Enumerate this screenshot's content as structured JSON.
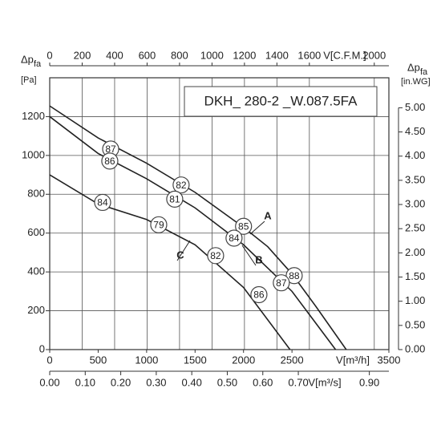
{
  "chart_data": {
    "type": "line",
    "title": "DKH_ 280-2 _W.087.5FA",
    "ylabel": "Δp",
    "ylabel_sub": "fa",
    "yunit": "[Pa]",
    "y2label": "Δp",
    "y2label_sub": "fa",
    "y2unit": "[in.WG]",
    "xlabel": "V[m³/h]",
    "x2label": "V[C.F.M.]",
    "x3label": "V[m³/s]",
    "xlim": [
      0,
      3500
    ],
    "xticks": [
      0,
      500,
      1000,
      1500,
      2000,
      2500,
      3500
    ],
    "ylim": [
      0,
      1400
    ],
    "yticks": [
      0,
      200,
      400,
      600,
      800,
      1000,
      1200
    ],
    "y2lim": [
      0,
      5.62
    ],
    "y2ticks": [
      {
        "value": 0,
        "label": "0.00"
      },
      {
        "value": 0.5,
        "label": "0.50"
      },
      {
        "value": 1,
        "label": "1.00"
      },
      {
        "value": 1.5,
        "label": "1.50"
      },
      {
        "value": 2,
        "label": "2.00"
      },
      {
        "value": 2.5,
        "label": "2.50"
      },
      {
        "value": 3,
        "label": "3.00"
      },
      {
        "value": 3.5,
        "label": "3.50"
      },
      {
        "value": 4,
        "label": "4.00"
      },
      {
        "value": 4.5,
        "label": "4.50"
      },
      {
        "value": 5,
        "label": "5.00"
      }
    ],
    "x2lim": [
      0,
      2090
    ],
    "x2ticks": [
      0,
      200,
      400,
      600,
      800,
      1000,
      1200,
      1400,
      1600,
      2000
    ],
    "x3lim": [
      0,
      0.955
    ],
    "x3ticks": [
      {
        "value": 0,
        "label": "0.00"
      },
      {
        "value": 0.1,
        "label": "0.10"
      },
      {
        "value": 0.2,
        "label": "0.20"
      },
      {
        "value": 0.3,
        "label": "0.30"
      },
      {
        "value": 0.4,
        "label": "0.40"
      },
      {
        "value": 0.5,
        "label": "0.50"
      },
      {
        "value": 0.6,
        "label": "0.60"
      },
      {
        "value": 0.7,
        "label": "0.70"
      },
      {
        "value": 0.9,
        "label": "0.90"
      }
    ],
    "grid": true,
    "series": [
      {
        "name": "A",
        "color": "#222222",
        "x": [
          0,
          500,
          1000,
          1500,
          2000,
          2250,
          2500,
          2750,
          3060
        ],
        "values": [
          1255,
          1090,
          960,
          810,
          630,
          530,
          390,
          220,
          0
        ],
        "efficiency": [
          {
            "x": 629,
            "y": 1033,
            "value": 87
          },
          {
            "x": 1356,
            "y": 848,
            "value": 82
          },
          {
            "x": 2000,
            "y": 635,
            "value": 85
          },
          {
            "x": 2523,
            "y": 381,
            "value": 88
          }
        ]
      },
      {
        "name": "B",
        "color": "#222222",
        "x": [
          0,
          500,
          1000,
          1500,
          2000,
          2500,
          2950
        ],
        "values": [
          1200,
          1010,
          880,
          730,
          540,
          300,
          0
        ],
        "efficiency": [
          {
            "x": 620,
            "y": 971,
            "value": 86
          },
          {
            "x": 1290,
            "y": 775,
            "value": 81
          },
          {
            "x": 1902,
            "y": 574,
            "value": 84
          },
          {
            "x": 2390,
            "y": 344,
            "value": 87
          }
        ]
      },
      {
        "name": "C",
        "color": "#222222",
        "x": [
          0,
          500,
          1000,
          1500,
          2000,
          2480
        ],
        "values": [
          900,
          750,
          670,
          540,
          320,
          0
        ],
        "efficiency": [
          {
            "x": 546,
            "y": 758,
            "value": 84
          },
          {
            "x": 1125,
            "y": 643,
            "value": 79
          },
          {
            "x": 1712,
            "y": 484,
            "value": 82
          },
          {
            "x": 2159,
            "y": 283,
            "value": 86
          }
        ]
      }
    ]
  }
}
